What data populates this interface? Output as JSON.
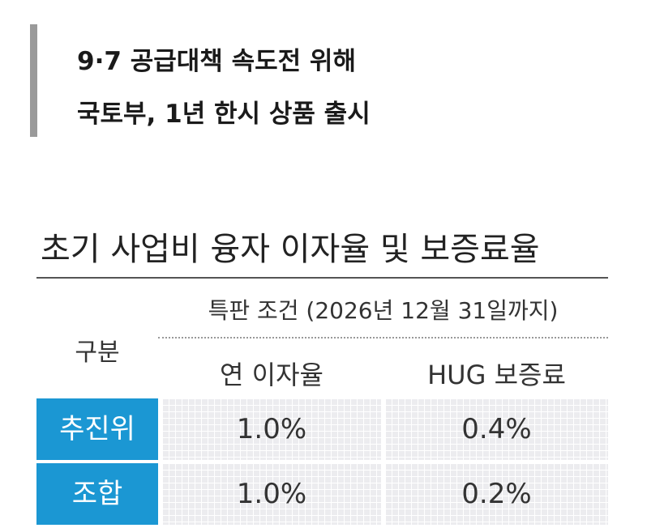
{
  "headline": {
    "lines": [
      "9·7 공급대책 속도전 위해",
      "국토부, 1년 한시 상품 출시"
    ]
  },
  "table": {
    "title": "초기 사업비 융자 이자율 및 보증료율",
    "header": {
      "category": "구분",
      "group": "특판 조건 (2026년 12월 31일까지)",
      "columns": [
        "연 이자율",
        "HUG 보증료"
      ]
    },
    "rows": [
      [
        "추진위",
        "1.0%",
        "0.4%"
      ],
      [
        "조합",
        "1.0%",
        "0.2%"
      ]
    ]
  }
}
